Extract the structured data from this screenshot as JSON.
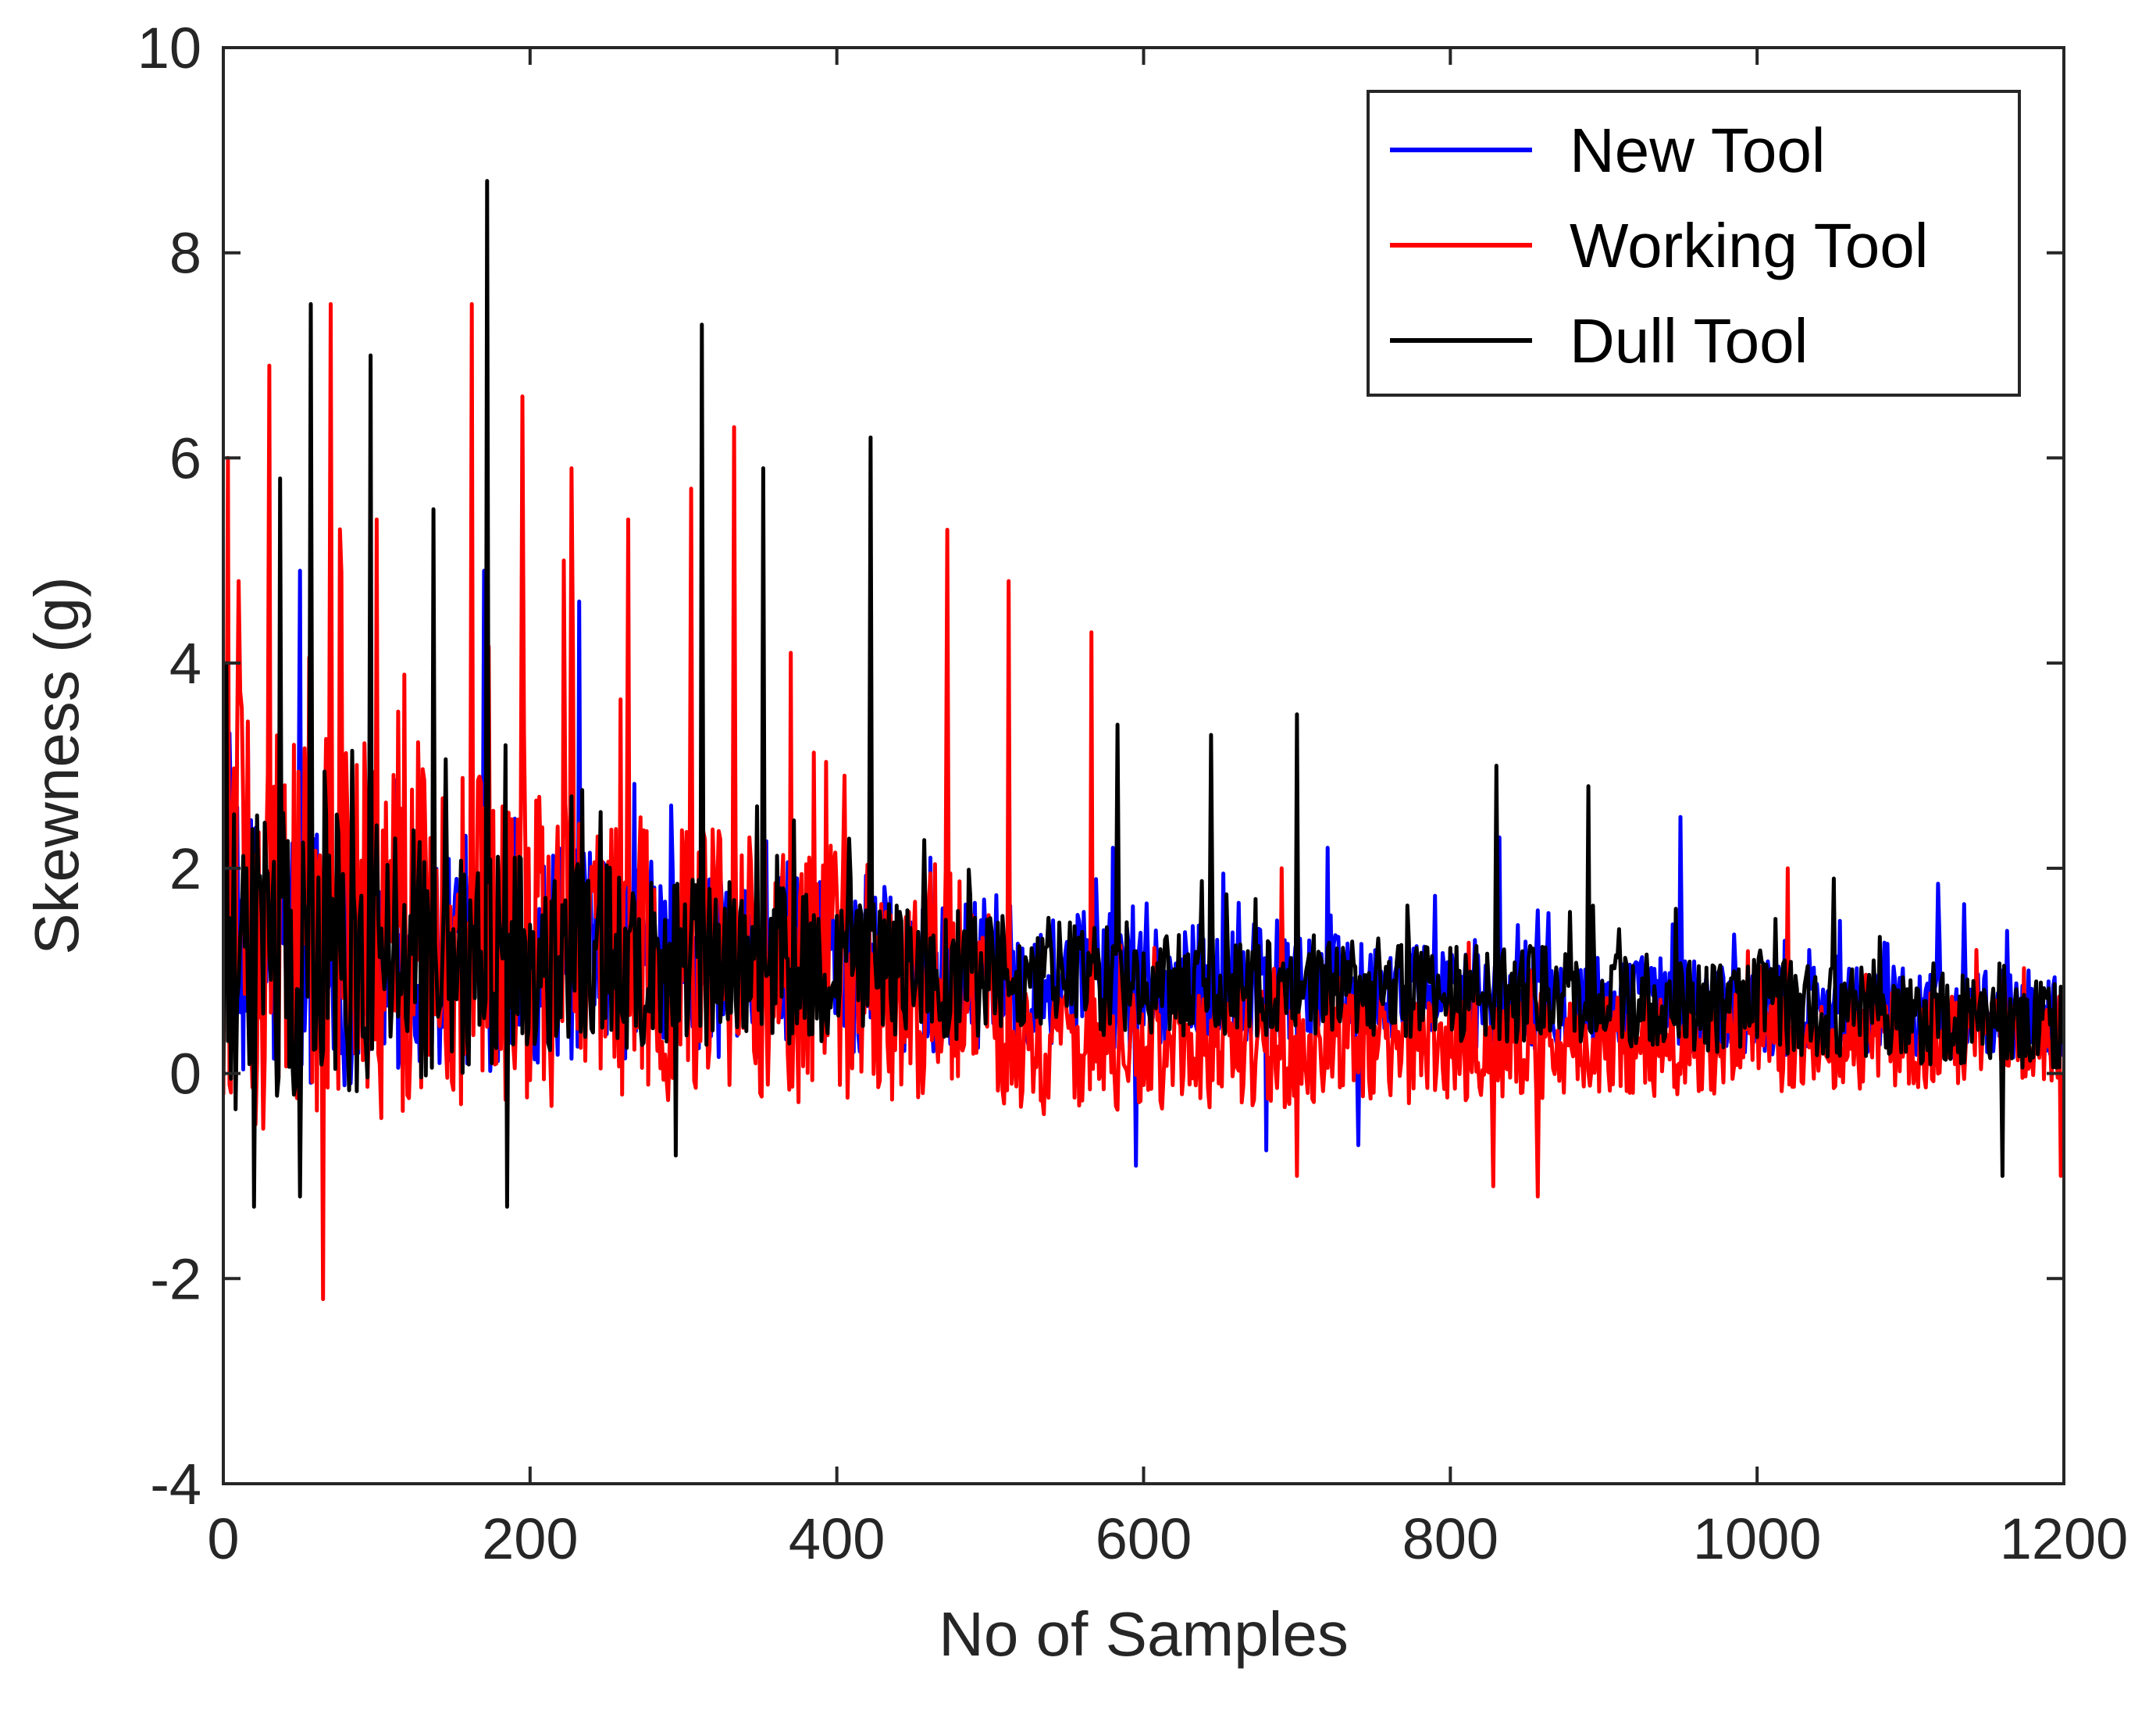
{
  "chart_data": {
    "type": "line",
    "title": "",
    "xlabel": "No of Samples",
    "ylabel": "Skewness (g)",
    "xlim": [
      0,
      1200
    ],
    "ylim": [
      -4,
      10
    ],
    "xticks": [
      0,
      200,
      400,
      600,
      800,
      1000,
      1200
    ],
    "yticks": [
      -4,
      -2,
      0,
      2,
      4,
      6,
      8,
      10
    ],
    "xtick_labels": [
      "0",
      "200",
      "400",
      "600",
      "800",
      "1000",
      "1200"
    ],
    "ytick_labels": [
      "-4",
      "-2",
      "0",
      "2",
      "4",
      "6",
      "8",
      "10"
    ],
    "grid": false,
    "legend_position": "top-right",
    "sample_count": 1200,
    "series": [
      {
        "name": "New Tool",
        "color": "#0000ff",
        "trend": [
          [
            0,
            1.2
          ],
          [
            200,
            1.15
          ],
          [
            500,
            0.95
          ],
          [
            800,
            0.75
          ],
          [
            1200,
            0.55
          ]
        ],
        "spread": [
          [
            0,
            1.3
          ],
          [
            200,
            1.0
          ],
          [
            500,
            0.65
          ],
          [
            800,
            0.45
          ],
          [
            1200,
            0.4
          ]
        ],
        "peaks": [
          [
            2,
            1.8
          ],
          [
            50,
            4.9
          ],
          [
            170,
            4.9
          ],
          [
            232,
            4.6
          ],
          [
            580,
            2.2
          ],
          [
            720,
            2.2
          ],
          [
            832,
            2.3
          ],
          [
            950,
            2.5
          ],
          [
            1118,
            1.85
          ],
          [
            1135,
            1.65
          ]
        ],
        "troughs": [
          [
            595,
            -0.9
          ],
          [
            680,
            -0.75
          ],
          [
            740,
            -0.7
          ]
        ]
      },
      {
        "name": "Working Tool",
        "color": "#ff0000",
        "trend": [
          [
            0,
            1.6
          ],
          [
            200,
            1.2
          ],
          [
            500,
            0.85
          ],
          [
            520,
            0.2
          ],
          [
            800,
            0.25
          ],
          [
            1000,
            0.3
          ],
          [
            1200,
            0.35
          ]
        ],
        "spread": [
          [
            0,
            2.0
          ],
          [
            200,
            1.4
          ],
          [
            500,
            1.0
          ],
          [
            520,
            0.55
          ],
          [
            1000,
            0.45
          ],
          [
            1200,
            0.4
          ]
        ],
        "peaks": [
          [
            3,
            6.0
          ],
          [
            10,
            4.8
          ],
          [
            30,
            6.9
          ],
          [
            70,
            7.5
          ],
          [
            100,
            5.4
          ],
          [
            162,
            7.5
          ],
          [
            195,
            6.6
          ],
          [
            222,
            5.0
          ],
          [
            227,
            5.9
          ],
          [
            264,
            5.4
          ],
          [
            305,
            5.7
          ],
          [
            333,
            6.3
          ],
          [
            370,
            4.1
          ],
          [
            472,
            5.3
          ],
          [
            512,
            4.8
          ],
          [
            566,
            4.3
          ],
          [
            690,
            2.0
          ],
          [
            1020,
            2.0
          ]
        ],
        "troughs": [
          [
            65,
            -2.2
          ],
          [
            700,
            -1.0
          ],
          [
            828,
            -1.1
          ],
          [
            857,
            -1.2
          ],
          [
            1198,
            -1.0
          ]
        ]
      },
      {
        "name": "Dull Tool",
        "color": "#000000",
        "trend": [
          [
            0,
            1.1
          ],
          [
            200,
            1.15
          ],
          [
            500,
            0.95
          ],
          [
            800,
            0.8
          ],
          [
            1000,
            0.65
          ],
          [
            1200,
            0.45
          ]
        ],
        "spread": [
          [
            0,
            1.5
          ],
          [
            200,
            0.9
          ],
          [
            500,
            0.55
          ],
          [
            800,
            0.45
          ],
          [
            1200,
            0.4
          ]
        ],
        "peaks": [
          [
            2,
            4.0
          ],
          [
            37,
            5.8
          ],
          [
            57,
            7.5
          ],
          [
            96,
            7.0
          ],
          [
            137,
            5.5
          ],
          [
            172,
            8.7
          ],
          [
            312,
            7.3
          ],
          [
            352,
            5.9
          ],
          [
            422,
            6.2
          ],
          [
            583,
            3.4
          ],
          [
            644,
            3.3
          ],
          [
            700,
            3.5
          ],
          [
            830,
            3.0
          ],
          [
            890,
            2.8
          ],
          [
            1050,
            1.9
          ]
        ],
        "troughs": [
          [
            20,
            -1.3
          ],
          [
            50,
            -1.2
          ],
          [
            185,
            -1.3
          ],
          [
            295,
            -0.8
          ],
          [
            1160,
            -1.0
          ]
        ]
      }
    ]
  }
}
